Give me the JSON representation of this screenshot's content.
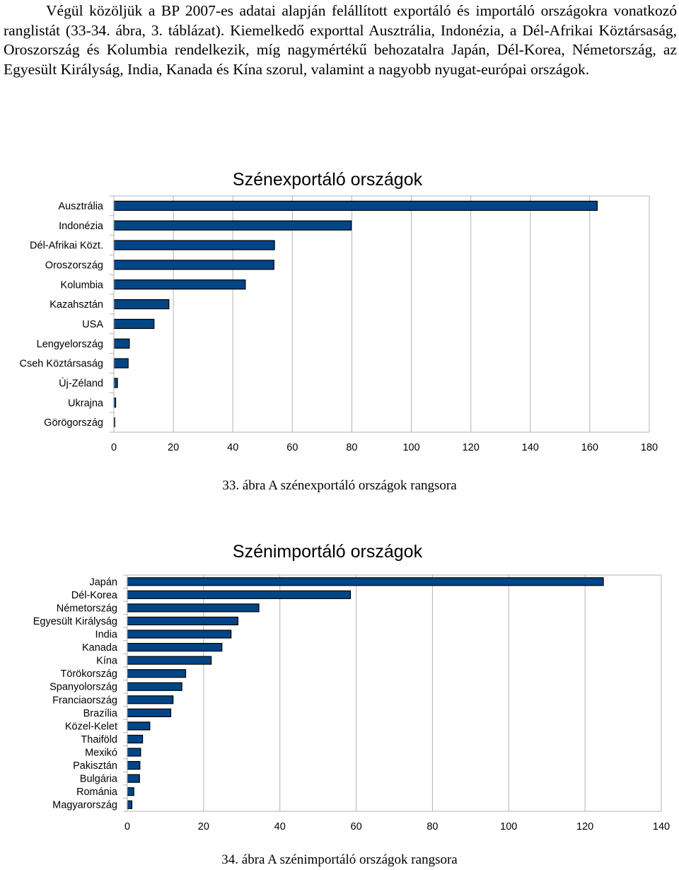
{
  "document": {
    "paragraph": "Végül közöljük a BP 2007-es adatai alapján felállított exportáló és importáló országokra vonatkozó ranglistát (33-34. ábra, 3. táblázat). Kiemelkedő exporttal Ausztrália, Indonézia, a Dél-Afrikai Köztársaság, Oroszország és Kolumbia rendelkezik, míg nagymértékű behozatalra Japán, Dél-Korea, Németország, az Egyesült Királyság, India, Kanada és Kína szorul, valamint a nagyobb nyugat-európai országok.",
    "caption_export": "33. ábra A szénexportáló országok rangsora",
    "caption_import": "34. ábra A szénimportáló országok rangsora"
  },
  "colors": {
    "bar_fill": "#004586",
    "bar_stroke": "#000000",
    "grid": "#b3b3b3"
  },
  "chart_data": [
    {
      "type": "bar",
      "orientation": "horizontal",
      "title": "Szénexportáló országok",
      "categories": [
        "Ausztrália",
        "Indonézia",
        "Dél-Afrikai Közt.",
        "Oroszország",
        "Kolumbia",
        "Kazahsztán",
        "USA",
        "Lengyelország",
        "Cseh Köztársaság",
        "Új-Zéland",
        "Ukrajna",
        "Görögország"
      ],
      "values": [
        162.5,
        79.8,
        54,
        53.8,
        44.2,
        18.5,
        13.5,
        5.2,
        4.8,
        1.2,
        0.6,
        0.1
      ],
      "xlim": [
        0,
        180
      ],
      "xticks": [
        0,
        20,
        40,
        60,
        80,
        100,
        120,
        140,
        160,
        180
      ],
      "grid": true
    },
    {
      "type": "bar",
      "orientation": "horizontal",
      "title": "Szénimportáló országok",
      "categories": [
        "Japán",
        "Dél-Korea",
        "Németország",
        "Egyesült Királyság",
        "India",
        "Kanada",
        "Kína",
        "Törökország",
        "Spanyolország",
        "Franciaország",
        "Brazília",
        "Közel-Kelet",
        "Thaiföld",
        "Mexikó",
        "Pakisztán",
        "Bulgária",
        "Románia",
        "Magyarország"
      ],
      "values": [
        124.8,
        58.5,
        34.5,
        29,
        27.2,
        24.8,
        22,
        15.3,
        14.3,
        12,
        11.4,
        5.9,
        4,
        3.5,
        3.3,
        3.2,
        1.7,
        1.2
      ],
      "xlim": [
        0,
        140
      ],
      "xticks": [
        0,
        20,
        40,
        60,
        80,
        100,
        120,
        140
      ],
      "grid": true
    }
  ]
}
